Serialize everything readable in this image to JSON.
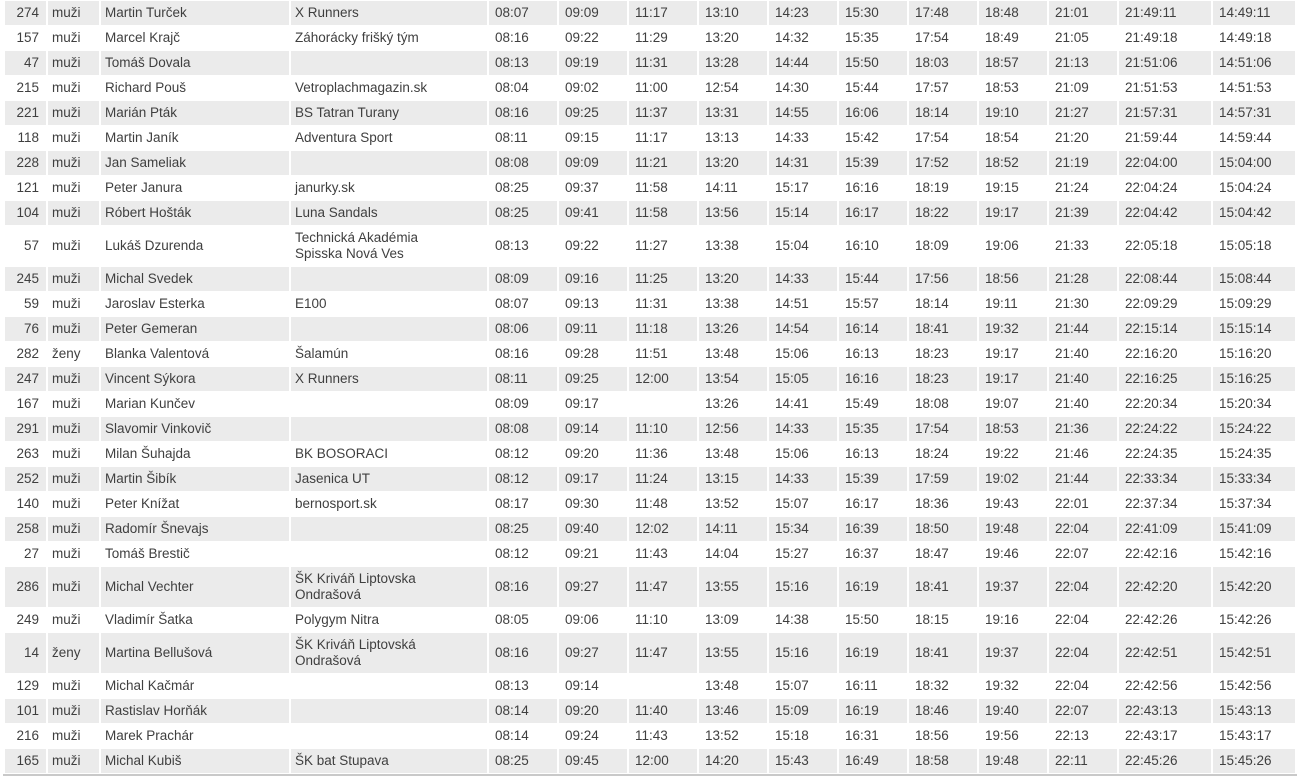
{
  "colors": {
    "row_stripe": "#ebebeb",
    "text": "#3f3f3f",
    "bottom_border": "#c9c9c9",
    "background": "#ffffff"
  },
  "results_table": {
    "description": "race-results-split-times",
    "rows": [
      {
        "bib": "274",
        "category": "muži",
        "name": "Martin Turček",
        "team": "X Runners",
        "splits": [
          "08:07",
          "09:09",
          "11:17",
          "13:10",
          "14:23",
          "15:30",
          "17:48",
          "18:48",
          "21:01"
        ],
        "finish_time": "21:49:11",
        "net_time": "14:49:11"
      },
      {
        "bib": "157",
        "category": "muži",
        "name": "Marcel Krajč",
        "team": "Záhorácky frišký tým",
        "splits": [
          "08:16",
          "09:22",
          "11:29",
          "13:20",
          "14:32",
          "15:35",
          "17:54",
          "18:49",
          "21:05"
        ],
        "finish_time": "21:49:18",
        "net_time": "14:49:18"
      },
      {
        "bib": "47",
        "category": "muži",
        "name": "Tomáš Dovala",
        "team": "",
        "splits": [
          "08:13",
          "09:19",
          "11:31",
          "13:28",
          "14:44",
          "15:50",
          "18:03",
          "18:57",
          "21:13"
        ],
        "finish_time": "21:51:06",
        "net_time": "14:51:06"
      },
      {
        "bib": "215",
        "category": "muži",
        "name": "Richard Pouš",
        "team": "Vetroplachmagazin.sk",
        "splits": [
          "08:04",
          "09:02",
          "11:00",
          "12:54",
          "14:30",
          "15:44",
          "17:57",
          "18:53",
          "21:09"
        ],
        "finish_time": "21:51:53",
        "net_time": "14:51:53"
      },
      {
        "bib": "221",
        "category": "muži",
        "name": "Marián Pták",
        "team": "BS Tatran Turany",
        "splits": [
          "08:16",
          "09:25",
          "11:37",
          "13:31",
          "14:55",
          "16:06",
          "18:14",
          "19:10",
          "21:27"
        ],
        "finish_time": "21:57:31",
        "net_time": "14:57:31"
      },
      {
        "bib": "118",
        "category": "muži",
        "name": "Martin Janík",
        "team": "Adventura Sport",
        "splits": [
          "08:11",
          "09:15",
          "11:17",
          "13:13",
          "14:33",
          "15:42",
          "17:54",
          "18:54",
          "21:20"
        ],
        "finish_time": "21:59:44",
        "net_time": "14:59:44"
      },
      {
        "bib": "228",
        "category": "muži",
        "name": "Jan Sameliak",
        "team": "",
        "splits": [
          "08:08",
          "09:09",
          "11:21",
          "13:20",
          "14:31",
          "15:39",
          "17:52",
          "18:52",
          "21:19"
        ],
        "finish_time": "22:04:00",
        "net_time": "15:04:00"
      },
      {
        "bib": "121",
        "category": "muži",
        "name": "Peter Janura",
        "team": "janurky.sk",
        "splits": [
          "08:25",
          "09:37",
          "11:58",
          "14:11",
          "15:17",
          "16:16",
          "18:19",
          "19:15",
          "21:24"
        ],
        "finish_time": "22:04:24",
        "net_time": "15:04:24"
      },
      {
        "bib": "104",
        "category": "muži",
        "name": "Róbert Hošták",
        "team": "Luna Sandals",
        "splits": [
          "08:25",
          "09:41",
          "11:58",
          "13:56",
          "15:14",
          "16:17",
          "18:22",
          "19:17",
          "21:39"
        ],
        "finish_time": "22:04:42",
        "net_time": "15:04:42"
      },
      {
        "bib": "57",
        "category": "muži",
        "name": "Lukáš Dzurenda",
        "team": "Technická Akadémia\nSpisska Nová Ves",
        "splits": [
          "08:13",
          "09:22",
          "11:27",
          "13:38",
          "15:04",
          "16:10",
          "18:09",
          "19:06",
          "21:33"
        ],
        "finish_time": "22:05:18",
        "net_time": "15:05:18"
      },
      {
        "bib": "245",
        "category": "muži",
        "name": "Michal Svedek",
        "team": "",
        "splits": [
          "08:09",
          "09:16",
          "11:25",
          "13:20",
          "14:33",
          "15:44",
          "17:56",
          "18:56",
          "21:28"
        ],
        "finish_time": "22:08:44",
        "net_time": "15:08:44"
      },
      {
        "bib": "59",
        "category": "muži",
        "name": "Jaroslav Esterka",
        "team": "E100",
        "splits": [
          "08:07",
          "09:13",
          "11:31",
          "13:38",
          "14:51",
          "15:57",
          "18:14",
          "19:11",
          "21:30"
        ],
        "finish_time": "22:09:29",
        "net_time": "15:09:29"
      },
      {
        "bib": "76",
        "category": "muži",
        "name": "Peter Gemeran",
        "team": "",
        "splits": [
          "08:06",
          "09:11",
          "11:18",
          "13:26",
          "14:54",
          "16:14",
          "18:41",
          "19:32",
          "21:44"
        ],
        "finish_time": "22:15:14",
        "net_time": "15:15:14"
      },
      {
        "bib": "282",
        "category": "ženy",
        "name": "Blanka Valentová",
        "team": "Šalamún",
        "splits": [
          "08:16",
          "09:28",
          "11:51",
          "13:48",
          "15:06",
          "16:13",
          "18:23",
          "19:17",
          "21:40"
        ],
        "finish_time": "22:16:20",
        "net_time": "15:16:20"
      },
      {
        "bib": "247",
        "category": "muži",
        "name": "Vincent Sýkora",
        "team": "X Runners",
        "splits": [
          "08:11",
          "09:25",
          "12:00",
          "13:54",
          "15:05",
          "16:16",
          "18:23",
          "19:17",
          "21:40"
        ],
        "finish_time": "22:16:25",
        "net_time": "15:16:25"
      },
      {
        "bib": "167",
        "category": "muži",
        "name": "Marian Kunčev",
        "team": "",
        "splits": [
          "08:09",
          "09:17",
          "",
          "13:26",
          "14:41",
          "15:49",
          "18:08",
          "19:07",
          "21:40"
        ],
        "finish_time": "22:20:34",
        "net_time": "15:20:34"
      },
      {
        "bib": "291",
        "category": "muži",
        "name": "Slavomir Vinkovič",
        "team": "",
        "splits": [
          "08:08",
          "09:14",
          "11:10",
          "12:56",
          "14:33",
          "15:35",
          "17:54",
          "18:53",
          "21:36"
        ],
        "finish_time": "22:24:22",
        "net_time": "15:24:22"
      },
      {
        "bib": "263",
        "category": "muži",
        "name": "Milan Šuhajda",
        "team": "BK BOSORACI",
        "splits": [
          "08:12",
          "09:20",
          "11:36",
          "13:48",
          "15:06",
          "16:13",
          "18:24",
          "19:22",
          "21:46"
        ],
        "finish_time": "22:24:35",
        "net_time": "15:24:35"
      },
      {
        "bib": "252",
        "category": "muži",
        "name": "Martin Šibík",
        "team": "Jasenica UT",
        "splits": [
          "08:12",
          "09:17",
          "11:24",
          "13:15",
          "14:33",
          "15:39",
          "17:59",
          "19:02",
          "21:44"
        ],
        "finish_time": "22:33:34",
        "net_time": "15:33:34"
      },
      {
        "bib": "140",
        "category": "muži",
        "name": "Peter Knížat",
        "team": "bernosport.sk",
        "splits": [
          "08:17",
          "09:30",
          "11:48",
          "13:52",
          "15:07",
          "16:17",
          "18:36",
          "19:43",
          "22:01"
        ],
        "finish_time": "22:37:34",
        "net_time": "15:37:34"
      },
      {
        "bib": "258",
        "category": "muži",
        "name": "Radomír Šnevajs",
        "team": "",
        "splits": [
          "08:25",
          "09:40",
          "12:02",
          "14:11",
          "15:34",
          "16:39",
          "18:50",
          "19:48",
          "22:04"
        ],
        "finish_time": "22:41:09",
        "net_time": "15:41:09"
      },
      {
        "bib": "27",
        "category": "muži",
        "name": "Tomáš Brestič",
        "team": "",
        "splits": [
          "08:12",
          "09:21",
          "11:43",
          "14:04",
          "15:27",
          "16:37",
          "18:47",
          "19:46",
          "22:07"
        ],
        "finish_time": "22:42:16",
        "net_time": "15:42:16"
      },
      {
        "bib": "286",
        "category": "muži",
        "name": "Michal Vechter",
        "team": "ŠK Kriváň Liptovska\nOndrašová",
        "splits": [
          "08:16",
          "09:27",
          "11:47",
          "13:55",
          "15:16",
          "16:19",
          "18:41",
          "19:37",
          "22:04"
        ],
        "finish_time": "22:42:20",
        "net_time": "15:42:20"
      },
      {
        "bib": "249",
        "category": "muži",
        "name": "Vladimír Šatka",
        "team": "Polygym Nitra",
        "splits": [
          "08:05",
          "09:06",
          "11:10",
          "13:09",
          "14:38",
          "15:50",
          "18:15",
          "19:16",
          "22:04"
        ],
        "finish_time": "22:42:26",
        "net_time": "15:42:26"
      },
      {
        "bib": "14",
        "category": "ženy",
        "name": "Martina Bellušová",
        "team": "ŠK Kriváň Liptovská\nOndrašová",
        "splits": [
          "08:16",
          "09:27",
          "11:47",
          "13:55",
          "15:16",
          "16:19",
          "18:41",
          "19:37",
          "22:04"
        ],
        "finish_time": "22:42:51",
        "net_time": "15:42:51"
      },
      {
        "bib": "129",
        "category": "muži",
        "name": "Michal Kačmár",
        "team": "",
        "splits": [
          "08:13",
          "09:14",
          "",
          "13:48",
          "15:07",
          "16:11",
          "18:32",
          "19:32",
          "22:04"
        ],
        "finish_time": "22:42:56",
        "net_time": "15:42:56"
      },
      {
        "bib": "101",
        "category": "muži",
        "name": "Rastislav Horňák",
        "team": "",
        "splits": [
          "08:14",
          "09:20",
          "11:40",
          "13:46",
          "15:09",
          "16:19",
          "18:46",
          "19:40",
          "22:07"
        ],
        "finish_time": "22:43:13",
        "net_time": "15:43:13"
      },
      {
        "bib": "216",
        "category": "muži",
        "name": "Marek Prachár",
        "team": "",
        "splits": [
          "08:14",
          "09:24",
          "11:43",
          "13:52",
          "15:18",
          "16:31",
          "18:56",
          "19:56",
          "22:13"
        ],
        "finish_time": "22:43:17",
        "net_time": "15:43:17"
      },
      {
        "bib": "165",
        "category": "muži",
        "name": "Michal Kubiš",
        "team": "ŠK bat Stupava",
        "splits": [
          "08:25",
          "09:45",
          "12:00",
          "14:20",
          "15:43",
          "16:49",
          "18:58",
          "19:48",
          "22:11"
        ],
        "finish_time": "22:45:26",
        "net_time": "15:45:26"
      }
    ]
  }
}
